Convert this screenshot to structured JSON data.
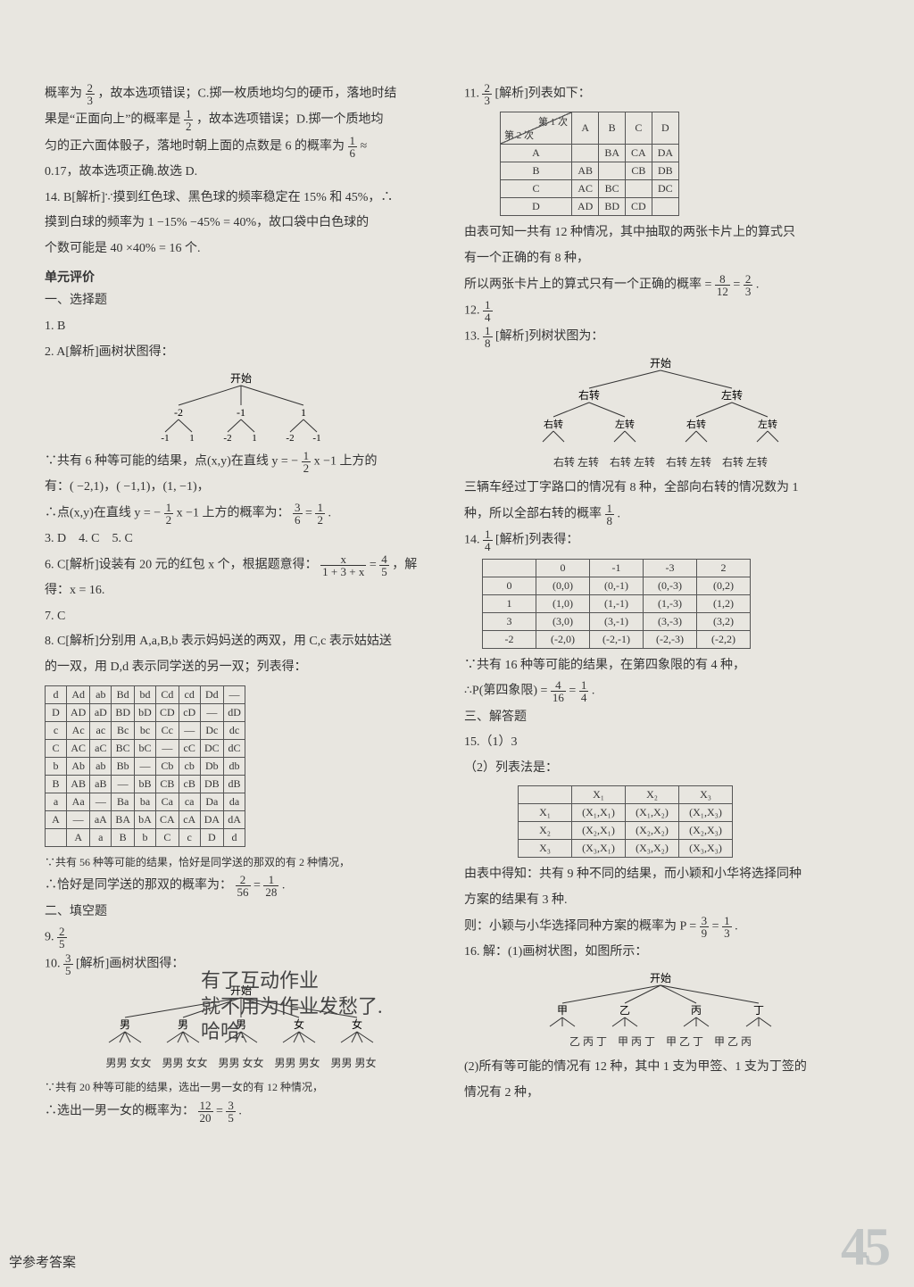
{
  "left": {
    "p13a": "概率为",
    "p13_frac": {
      "n": "2",
      "d": "3"
    },
    "p13b": "，故本选项错误；C.掷一枚质地均匀的硬币，落地时结",
    "p13c": "果是“正面向上”的概率是",
    "p13c_frac": {
      "n": "1",
      "d": "2"
    },
    "p13d": "，故本选项错误；D.掷一个质地均",
    "p13e": "匀的正六面体骰子，落地时朝上面的点数是 6 的概率为",
    "p13e_frac": {
      "n": "1",
      "d": "6"
    },
    "p13f": "≈",
    "p13g": "0.17，故本选项正确.故选 D.",
    "p14a": "14. B[解析]∵摸到红色球、黑色球的频率稳定在 15% 和 45%，∴",
    "p14b": "摸到白球的频率为 1 −15% −45% = 40%，故口袋中白色球的",
    "p14c": "个数可能是 40 ×40% = 16 个.",
    "unit_title": "单元评价",
    "sel_title": "一、选择题",
    "q1": "1. B",
    "q2": "2. A[解析]画树状图得：",
    "tree1_root": "开始",
    "tree1_l1": [
      "-2",
      "-1",
      "1"
    ],
    "tree1_l2": [
      [
        "-1",
        "1"
      ],
      [
        "-2",
        "1"
      ],
      [
        "-2",
        "-1"
      ]
    ],
    "q2a": "∵共有 6 种等可能的结果，点(x,y)在直线 y = −",
    "q2a_frac": {
      "n": "1",
      "d": "2"
    },
    "q2a2": "x −1 上方的",
    "q2b": "有：( −2,1)，( −1,1)，(1, −1)，",
    "q2c": "∴点(x,y)在直线 y = −",
    "q2c_frac": {
      "n": "1",
      "d": "2"
    },
    "q2c2": "x −1 上方的概率为：",
    "q2c_frac2": {
      "n": "3",
      "d": "6"
    },
    "q2c3": " = ",
    "q2c_frac3": {
      "n": "1",
      "d": "2"
    },
    "q2c4": ".",
    "q3": "3. D　4. C　5. C",
    "q6a": "6. C[解析]设装有 20 元的红包 x 个，根据题意得：",
    "q6_frac1": {
      "n": "x",
      "d": "1 + 3 + x"
    },
    "q6b": " = ",
    "q6_frac2": {
      "n": "4",
      "d": "5"
    },
    "q6c": "，解",
    "q6d": "得：x = 16.",
    "q7": "7. C",
    "q8a": "8. C[解析]分别用 A,a,B,b 表示妈妈送的两双，用 C,c 表示姑姑送",
    "q8b": "的一双，用 D,d 表示同学送的另一双；列表得：",
    "table8": {
      "rows": [
        [
          "d",
          "Ad",
          "ab",
          "Bd",
          "bd",
          "Cd",
          "cd",
          "Dd",
          "—"
        ],
        [
          "D",
          "AD",
          "aD",
          "BD",
          "bD",
          "CD",
          "cD",
          "—",
          "dD"
        ],
        [
          "c",
          "Ac",
          "ac",
          "Bc",
          "bc",
          "Cc",
          "—",
          "Dc",
          "dc"
        ],
        [
          "C",
          "AC",
          "aC",
          "BC",
          "bC",
          "—",
          "cC",
          "DC",
          "dC"
        ],
        [
          "b",
          "Ab",
          "ab",
          "Bb",
          "—",
          "Cb",
          "cb",
          "Db",
          "db"
        ],
        [
          "B",
          "AB",
          "aB",
          "—",
          "bB",
          "CB",
          "cB",
          "DB",
          "dB"
        ],
        [
          "a",
          "Aa",
          "—",
          "Ba",
          "ba",
          "Ca",
          "ca",
          "Da",
          "da"
        ],
        [
          "A",
          "—",
          "aA",
          "BA",
          "bA",
          "CA",
          "cA",
          "DA",
          "dA"
        ],
        [
          "",
          "A",
          "a",
          "B",
          "b",
          "C",
          "c",
          "D",
          "d"
        ]
      ]
    },
    "q8c": "∵共有 56 种等可能的结果，恰好是同学送的那双的有 2 种情况，",
    "q8d": "∴恰好是同学送的那双的概率为：",
    "q8_frac1": {
      "n": "2",
      "d": "56"
    },
    "q8d2": " = ",
    "q8_frac2": {
      "n": "1",
      "d": "28"
    },
    "q8d3": ".",
    "fill_title": "二、填空题",
    "q9": "9. ",
    "q9_frac": {
      "n": "2",
      "d": "5"
    },
    "q10": "10. ",
    "q10_frac": {
      "n": "3",
      "d": "5"
    },
    "q10a": "[解析]画树状图得：",
    "tree3_root": "开始",
    "tree3_l1": [
      "男",
      "男",
      "男",
      "女",
      "女"
    ],
    "tree3_l2": "男男 女女　男男 女女　男男 女女　男男 男女　男男 男女",
    "q10b": "∵共有 20 种等可能的结果，选出一男一女的有 12 种情况，",
    "q10c": "∴选出一男一女的概率为：",
    "q10_frac2": {
      "n": "12",
      "d": "20"
    },
    "q10c2": " = ",
    "q10_frac3": {
      "n": "3",
      "d": "5"
    },
    "q10c3": "."
  },
  "right": {
    "q11": "11. ",
    "q11_frac": {
      "n": "2",
      "d": "3"
    },
    "q11a": "[解析]列表如下：",
    "table11": {
      "header_diag": [
        "第 1 次",
        "第 2 次"
      ],
      "cols": [
        "A",
        "B",
        "C",
        "D"
      ],
      "rows": [
        [
          "A",
          "",
          "BA",
          "CA",
          "DA"
        ],
        [
          "B",
          "AB",
          "",
          "CB",
          "DB"
        ],
        [
          "C",
          "AC",
          "BC",
          "",
          "DC"
        ],
        [
          "D",
          "AD",
          "BD",
          "CD",
          ""
        ]
      ]
    },
    "q11b": "由表可知一共有 12 种情况，其中抽取的两张卡片上的算式只",
    "q11c": "有一个正确的有 8 种，",
    "q11d": "所以两张卡片上的算式只有一个正确的概率 = ",
    "q11_frac2": {
      "n": "8",
      "d": "12"
    },
    "q11d2": " = ",
    "q11_frac3": {
      "n": "2",
      "d": "3"
    },
    "q11d3": ".",
    "q12": "12. ",
    "q12_frac": {
      "n": "1",
      "d": "4"
    },
    "q13": "13. ",
    "q13_frac": {
      "n": "1",
      "d": "8"
    },
    "q13a": "[解析]列树状图为：",
    "tree2_root": "开始",
    "tree2_l1": [
      "右转",
      "左转"
    ],
    "tree2_l2": [
      "右转",
      "左转",
      "右转",
      "左转"
    ],
    "tree2_l3": "右转 左转　右转 左转　右转 左转　右转 左转",
    "q13b": "三辆车经过丁字路口的情况有 8 种，全部向右转的情况数为 1",
    "q13c": "种，所以全部右转的概率",
    "q13_frac2": {
      "n": "1",
      "d": "8"
    },
    "q13c2": ".",
    "q14": "14. ",
    "q14_frac": {
      "n": "1",
      "d": "4"
    },
    "q14a": "[解析]列表得：",
    "table14": {
      "cols": [
        "",
        "0",
        "-1",
        "-3",
        "2"
      ],
      "rows": [
        [
          "0",
          "(0,0)",
          "(0,-1)",
          "(0,-3)",
          "(0,2)"
        ],
        [
          "1",
          "(1,0)",
          "(1,-1)",
          "(1,-3)",
          "(1,2)"
        ],
        [
          "3",
          "(3,0)",
          "(3,-1)",
          "(3,-3)",
          "(3,2)"
        ],
        [
          "-2",
          "(-2,0)",
          "(-2,-1)",
          "(-2,-3)",
          "(-2,2)"
        ]
      ]
    },
    "q14b": "∵共有 16 种等可能的结果，在第四象限的有 4 种，",
    "q14c": "∴P(第四象限) = ",
    "q14_frac2": {
      "n": "4",
      "d": "16"
    },
    "q14c2": " = ",
    "q14_frac3": {
      "n": "1",
      "d": "4"
    },
    "q14c3": ".",
    "ans_title": "三、解答题",
    "q15a": "15.（1）3",
    "q15b": "（2）列表法是：",
    "table15": {
      "cols": [
        "",
        "X₁",
        "X₂",
        "X₃"
      ],
      "rows": [
        [
          "X₁",
          "(X₁,X₁)",
          "(X₁,X₂)",
          "(X₁,X₃)"
        ],
        [
          "X₂",
          "(X₂,X₁)",
          "(X₂,X₂)",
          "(X₂,X₃)"
        ],
        [
          "X₃",
          "(X₃,X₁)",
          "(X₃,X₂)",
          "(X₃,X₃)"
        ]
      ]
    },
    "q15c": "由表中得知：共有 9 种不同的结果，而小颖和小华将选择同种",
    "q15d": "方案的结果有 3 种.",
    "q15e": "则：小颖与小华选择同种方案的概率为 P = ",
    "q15_frac": {
      "n": "3",
      "d": "9"
    },
    "q15e2": " = ",
    "q15_frac2": {
      "n": "1",
      "d": "3"
    },
    "q15e3": ".",
    "q16a": "16. 解：(1)画树状图，如图所示：",
    "tree4_root": "开始",
    "tree4_l1": [
      "甲",
      "乙",
      "丙",
      "丁"
    ],
    "tree4_l2": "乙 丙 丁　甲 丙 丁　甲 乙 丁　甲 乙 丙",
    "q16b": "(2)所有等可能的情况有 12 种，其中 1 支为甲签、1 支为丁签的",
    "q16c": "情况有 2 种，"
  },
  "annotation": {
    "line1": "有了互动作业",
    "line2": "就不用为作业发愁了.",
    "line3": "哈哈."
  },
  "footer": "学参考答案",
  "page_number": "45"
}
